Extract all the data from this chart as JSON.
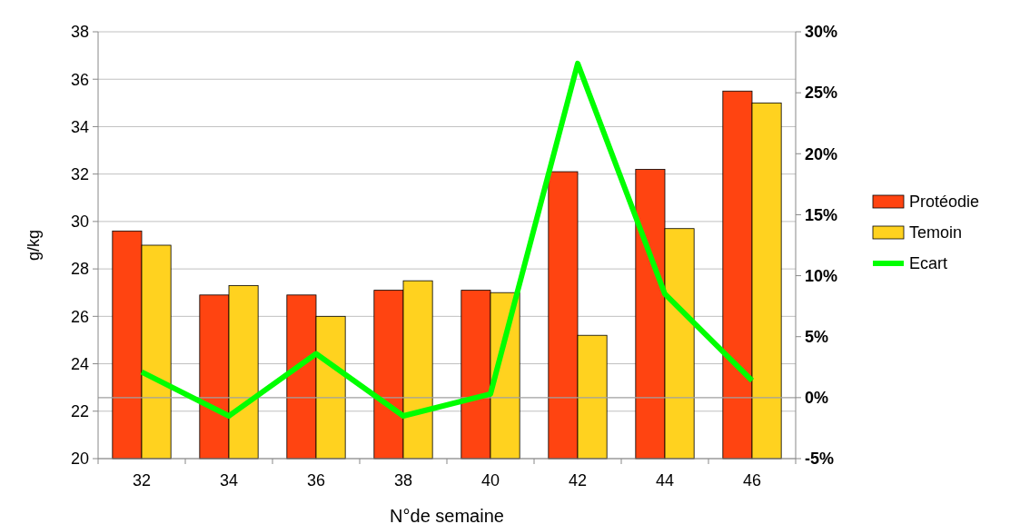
{
  "chart_data": {
    "type": "bar",
    "xlabel": "N°de semaine",
    "ylabel": "g/kg",
    "categories": [
      "32",
      "34",
      "36",
      "38",
      "40",
      "42",
      "44",
      "46"
    ],
    "series": [
      {
        "name": "Protéodie",
        "color": "#ff4411",
        "values": [
          29.6,
          26.9,
          26.9,
          27.1,
          27.1,
          32.1,
          32.2,
          35.5
        ]
      },
      {
        "name": "Temoin",
        "color": "#ffd21f",
        "values": [
          29.0,
          27.3,
          26.0,
          27.5,
          27.0,
          25.2,
          29.7,
          35.0
        ]
      },
      {
        "name": "Ecart",
        "type": "line",
        "axis": "y2",
        "color": "#00ff00",
        "values": [
          2.1,
          -1.5,
          3.6,
          -1.5,
          0.3,
          27.4,
          8.5,
          1.4
        ]
      }
    ],
    "ylim": [
      20,
      38
    ],
    "yticks": [
      20,
      22,
      24,
      26,
      28,
      30,
      32,
      34,
      36,
      38
    ],
    "y2lim": [
      -5,
      30
    ],
    "y2ticks": [
      {
        "value": -5,
        "label": "-5%"
      },
      {
        "value": 0,
        "label": "0%"
      },
      {
        "value": 5,
        "label": "5%"
      },
      {
        "value": 10,
        "label": "10%"
      },
      {
        "value": 15,
        "label": "15%"
      },
      {
        "value": 20,
        "label": "20%"
      },
      {
        "value": 25,
        "label": "25%"
      },
      {
        "value": 30,
        "label": "30%"
      }
    ],
    "ref_lines": [
      {
        "axis": "y2",
        "value": 0,
        "color": "#a0a0a0"
      }
    ],
    "grid": "y",
    "legend": "right",
    "marker": "none",
    "line_style": "solid"
  }
}
